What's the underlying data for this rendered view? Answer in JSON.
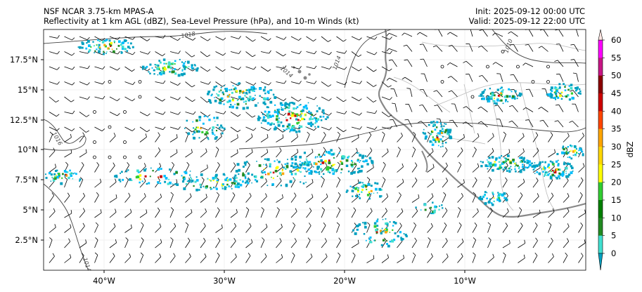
{
  "title": {
    "model": "NSF NCAR 3.75-km MPAS-A",
    "fields": "Reflectivity at 1 km AGL (dBZ), Sea-Level Pressure (hPa), and 10-m Winds (kt)",
    "init": "Init: 2025-09-12 00:00 UTC",
    "valid": "Valid: 2025-09-12 22:00 UTC"
  },
  "axes": {
    "lon_ticks": [
      "40°W",
      "30°W",
      "20°W",
      "10°W"
    ],
    "lat_ticks": [
      "17.5°N",
      "15°N",
      "12.5°N",
      "10°N",
      "7.5°N",
      "5°N",
      "2.5°N"
    ],
    "lon_range": [
      -45,
      0
    ],
    "lat_range": [
      0,
      20
    ]
  },
  "isobars": [
    {
      "label": "1018"
    },
    {
      "label": "1016"
    },
    {
      "label": "1014"
    },
    {
      "label": "1014"
    },
    {
      "label": "1010"
    },
    {
      "label": "1014"
    }
  ],
  "colorbar": {
    "label": "dBZ",
    "ticks": [
      "60",
      "55",
      "50",
      "45",
      "40",
      "35",
      "30",
      "25",
      "20",
      "15",
      "10",
      "5",
      "0"
    ],
    "colors": [
      "#ffe4e1",
      "#ff00ff",
      "#c71585",
      "#8b0000",
      "#cd0000",
      "#ff4500",
      "#ffa500",
      "#ffd700",
      "#ffff00",
      "#32cd32",
      "#008000",
      "#228b22",
      "#40e0d0",
      "#00bfff",
      "#008b8b",
      "#00a0c0"
    ]
  }
}
